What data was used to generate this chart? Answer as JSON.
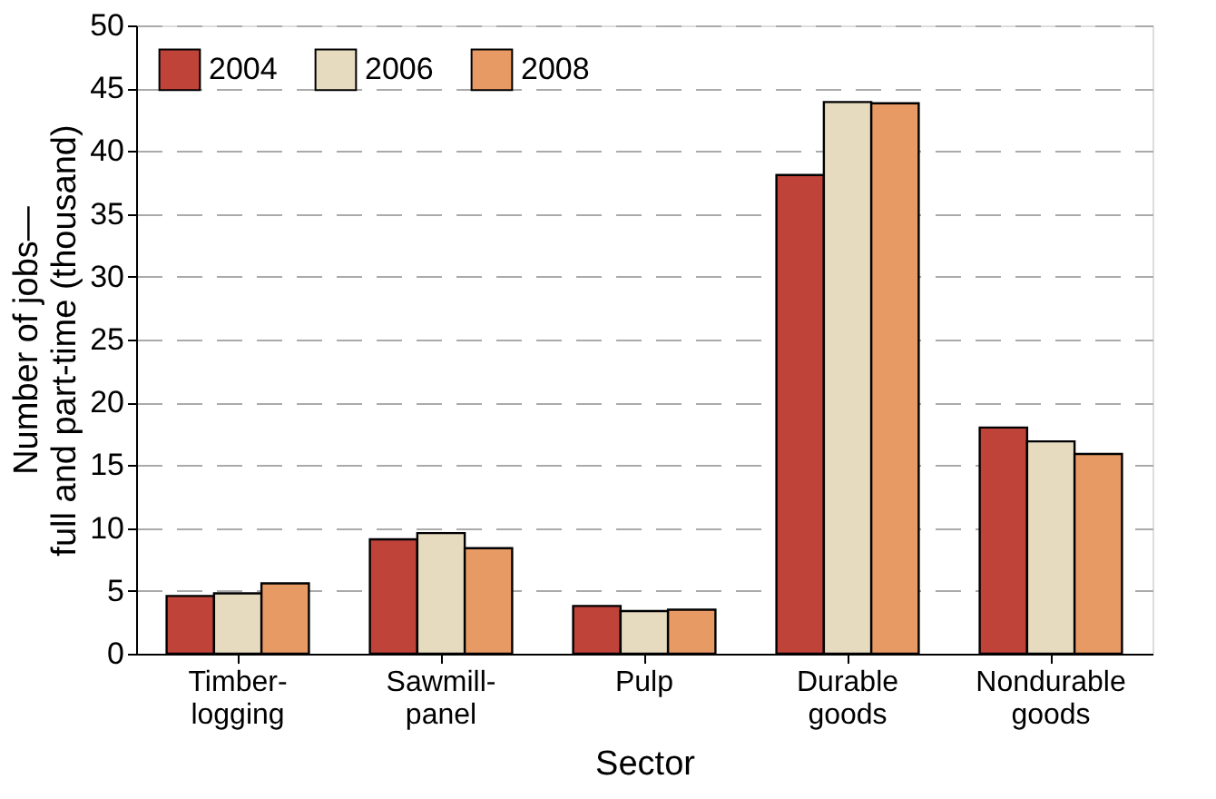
{
  "chart_data": {
    "type": "bar",
    "xlabel": "Sector",
    "ylabel": "Number of jobs—\nfull and part-time (thousand)",
    "categories": [
      "Timber-\nlogging",
      "Sawmill-\npanel",
      "Pulp",
      "Durable\ngoods",
      "Nondurable\ngoods"
    ],
    "series": [
      {
        "name": "2004",
        "color": "#c0433a",
        "values": [
          4.6,
          9.1,
          3.8,
          38.1,
          18.0
        ]
      },
      {
        "name": "2006",
        "color": "#e6dbbf",
        "values": [
          4.8,
          9.6,
          3.4,
          43.9,
          16.9
        ]
      },
      {
        "name": "2008",
        "color": "#e89a64",
        "values": [
          5.6,
          8.4,
          3.5,
          43.8,
          15.9
        ]
      }
    ],
    "ylim": [
      0,
      50
    ],
    "yticks": [
      0,
      5,
      10,
      15,
      20,
      25,
      30,
      35,
      40,
      45,
      50
    ],
    "grid": "y",
    "legend": "top left"
  }
}
